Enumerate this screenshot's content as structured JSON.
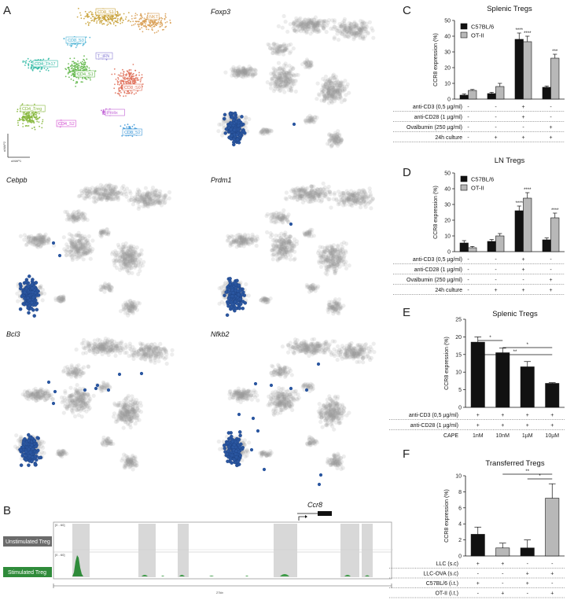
{
  "panel_labels": [
    "A",
    "B",
    "C",
    "D",
    "E",
    "F"
  ],
  "umap": {
    "x_label": "uMAP1",
    "y_label": "uMAP2",
    "clusters": [
      {
        "name": "CD8_S1",
        "color": "#c9a23a"
      },
      {
        "name": "NKT",
        "color": "#d9a057"
      },
      {
        "name": "CD8_S3",
        "color": "#4fb5d6"
      },
      {
        "name": "T_IFN",
        "color": "#8a7fd6"
      },
      {
        "name": "CD4_Th17",
        "color": "#2fb9a4"
      },
      {
        "name": "CD4_S1",
        "color": "#63b84c"
      },
      {
        "name": "CD8_S0",
        "color": "#e0705a"
      },
      {
        "name": "CD4_Treg",
        "color": "#86b73c"
      },
      {
        "name": "Prolix",
        "color": "#c05fd6"
      },
      {
        "name": "CD4_S2",
        "color": "#d24fd0"
      },
      {
        "name": "CD8_S2",
        "color": "#3f98d8"
      }
    ],
    "gene_panels": [
      "Foxp3",
      "Cebpb",
      "Prdm1",
      "Bcl3",
      "Nfkb2"
    ]
  },
  "track": {
    "rows": [
      "Unstimulated Treg",
      "Stimulated Treg"
    ],
    "range_labels": [
      "[0 - 60]",
      "[0 - 60]"
    ],
    "gene": "Ccr8",
    "scale": "27kb",
    "row_colors": [
      "#6b6b6b",
      "#2f8b3a"
    ]
  },
  "chart_data": [
    {
      "panel": "C",
      "type": "bar",
      "title": "Splenic Tregs",
      "ylabel": "CCR8 expression (%)",
      "ylim": [
        0,
        50
      ],
      "yticks": [
        0,
        10,
        20,
        30,
        40,
        50
      ],
      "series": [
        {
          "name": "C57BL/6",
          "color": "#111111",
          "values": [
            2.5,
            3.5,
            38,
            7.5
          ],
          "errors": [
            0.8,
            0.8,
            4,
            0.8
          ],
          "stars": [
            "",
            "",
            "****",
            ""
          ]
        },
        {
          "name": "OT-II",
          "color": "#b8b8b8",
          "values": [
            5.5,
            8,
            36.5,
            26
          ],
          "errors": [
            0.6,
            2,
            3.5,
            2.5
          ],
          "stars": [
            "",
            "",
            "****",
            "***"
          ]
        }
      ],
      "conditions": [
        {
          "label": "anti-CD3 (0,5 µg/ml)",
          "values": [
            "-",
            "-",
            "+",
            "-"
          ]
        },
        {
          "label": "anti-CD28 (1 µg/ml)",
          "values": [
            "-",
            "-",
            "+",
            "-"
          ]
        },
        {
          "label": "Ovalbumin (250 µg/ml)",
          "values": [
            "-",
            "-",
            "-",
            "+"
          ]
        },
        {
          "label": "24h culture",
          "values": [
            "-",
            "+",
            "+",
            "+"
          ]
        }
      ]
    },
    {
      "panel": "D",
      "type": "bar",
      "title": "LN Tregs",
      "ylabel": "CCR8 expression (%)",
      "ylim": [
        0,
        50
      ],
      "yticks": [
        0,
        10,
        20,
        30,
        40,
        50
      ],
      "series": [
        {
          "name": "C57BL/6",
          "color": "#111111",
          "values": [
            5.5,
            6.5,
            26,
            7.5
          ],
          "errors": [
            1.5,
            1.2,
            3,
            1.2
          ],
          "stars": [
            "",
            "",
            "****",
            ""
          ]
        },
        {
          "name": "OT-II",
          "color": "#b8b8b8",
          "values": [
            2.5,
            10,
            34,
            21.5
          ],
          "errors": [
            0.8,
            1.5,
            3.5,
            3
          ],
          "stars": [
            "",
            "",
            "****",
            "****"
          ]
        }
      ],
      "conditions": [
        {
          "label": "anti-CD3 (0,5 µg/ml)",
          "values": [
            "-",
            "-",
            "+",
            "-"
          ]
        },
        {
          "label": "anti-CD28 (1 µg/ml)",
          "values": [
            "-",
            "-",
            "+",
            "-"
          ]
        },
        {
          "label": "Ovalbumin (250 µg/ml)",
          "values": [
            "-",
            "-",
            "-",
            "+"
          ]
        },
        {
          "label": "24h culture",
          "values": [
            "-",
            "+",
            "+",
            "+"
          ]
        }
      ]
    },
    {
      "panel": "E",
      "type": "bar",
      "title": "Splenic Tregs",
      "ylabel": "CCR8 expression (%)",
      "ylim": [
        0,
        25
      ],
      "yticks": [
        0,
        5,
        10,
        15,
        20,
        25
      ],
      "categories": [
        "1nM",
        "10nM",
        "1µM",
        "10µM"
      ],
      "x_title": "CAPE",
      "series": [
        {
          "name": "CAPE",
          "color": "#111111",
          "values": [
            18.5,
            15.5,
            11.5,
            6.8
          ],
          "errors": [
            1.5,
            1.3,
            1.5,
            0.2
          ]
        }
      ],
      "conditions": [
        {
          "label": "anti-CD3 (0,5 µg/ml)",
          "values": [
            "+",
            "+",
            "+",
            "+"
          ]
        },
        {
          "label": "anti-CD28 (1 µg/ml)",
          "values": [
            "+",
            "+",
            "+",
            "+"
          ]
        }
      ],
      "significance": [
        {
          "from": 0,
          "to": 3,
          "label": "**"
        },
        {
          "from": 0,
          "to": 1,
          "label": "*"
        },
        {
          "from": 1,
          "to": 3,
          "label": "*"
        }
      ]
    },
    {
      "panel": "F",
      "type": "bar",
      "title": "Transferred Tregs",
      "ylabel": "CCR8 expression (%)",
      "ylim": [
        0,
        10
      ],
      "yticks": [
        0,
        2,
        4,
        6,
        8,
        10
      ],
      "series": [
        {
          "name": "Transferred",
          "values": [
            2.7,
            1.0,
            1.0,
            7.2
          ],
          "errors": [
            0.9,
            0.6,
            1.0,
            1.8
          ],
          "colors": [
            "#111111",
            "#b8b8b8",
            "#111111",
            "#b8b8b8"
          ]
        }
      ],
      "conditions": [
        {
          "label": "LLC (s.c)",
          "values": [
            "+",
            "+",
            "-",
            "-"
          ]
        },
        {
          "label": "LLC-OVA (s.c)",
          "values": [
            "-",
            "-",
            "+",
            "+"
          ]
        },
        {
          "label": "C57BL/6 (i.t.)",
          "values": [
            "+",
            "-",
            "+",
            "-"
          ]
        },
        {
          "label": "OT-II (i.t.)",
          "values": [
            "-",
            "+",
            "-",
            "+"
          ]
        }
      ],
      "significance": [
        {
          "from": 1,
          "to": 3,
          "label": "**"
        },
        {
          "from": 2,
          "to": 3,
          "label": "*"
        }
      ]
    }
  ]
}
